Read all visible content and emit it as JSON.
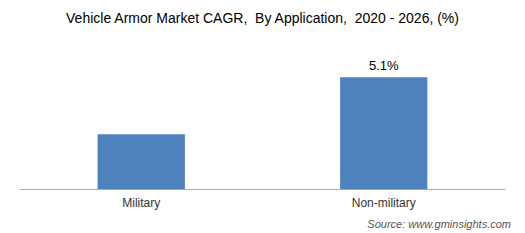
{
  "chart_data": {
    "type": "bar",
    "title": "Vehicle Armor Market CAGR,  By Application,  2020 - 2026, (%)",
    "categories": [
      "Military",
      "Non-military"
    ],
    "values": [
      2.5,
      5.1
    ],
    "color": "#4d82be",
    "data_labels": true,
    "value_labels": [
      null,
      "5.1%"
    ],
    "ylim": [
      0,
      6.8
    ],
    "tick_labels": "x",
    "grid": false,
    "source": "Source: www.gminsights.com"
  }
}
